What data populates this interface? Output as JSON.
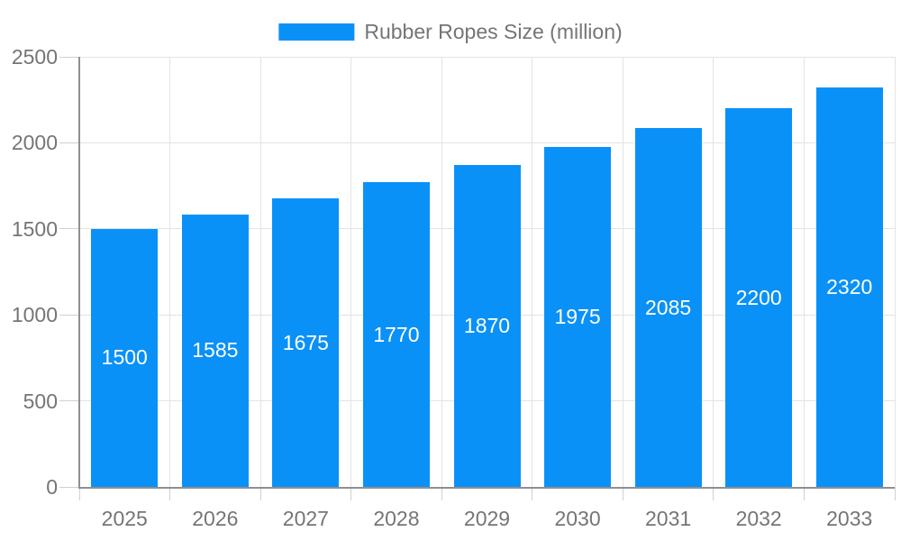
{
  "chart": {
    "colors": {
      "bar": "#0a91f8",
      "grid": "#e3e3e3",
      "axis": "#8f8f8f",
      "tick": "#d0d0d0",
      "text": "#757575",
      "value_text": "#ffffff",
      "background": "#ffffff"
    }
  },
  "chart_data": {
    "type": "bar",
    "title": "Rubber Ropes Size (million)",
    "legend": [
      "Rubber Ropes Size (million)"
    ],
    "legend_position": "top-center",
    "categories": [
      "2025",
      "2026",
      "2027",
      "2028",
      "2029",
      "2030",
      "2031",
      "2032",
      "2033"
    ],
    "series": [
      {
        "name": "Rubber Ropes Size (million)",
        "values": [
          1500,
          1585,
          1675,
          1770,
          1870,
          1975,
          2085,
          2200,
          2320
        ]
      }
    ],
    "xlabel": "",
    "ylabel": "",
    "ylim": [
      0,
      2500
    ],
    "yticks": [
      0,
      500,
      1000,
      1500,
      2000,
      2500
    ],
    "grid": true,
    "value_labels": "inside bars, vertically centered, white text"
  }
}
